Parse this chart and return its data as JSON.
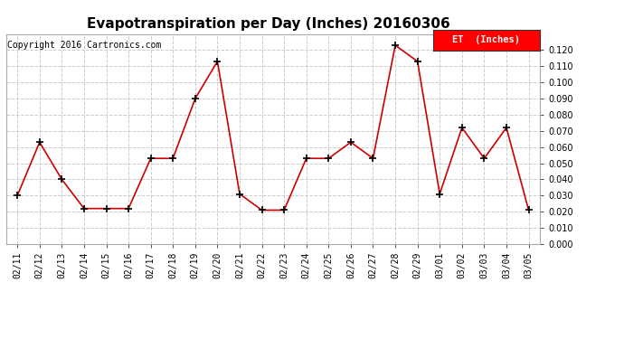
{
  "title": "Evapotranspiration per Day (Inches) 20160306",
  "copyright_text": "Copyright 2016 Cartronics.com",
  "legend_label": "ET  (Inches)",
  "legend_bg": "#ff0000",
  "legend_text_color": "#ffffff",
  "x_labels": [
    "02/11",
    "02/12",
    "02/13",
    "02/14",
    "02/15",
    "02/16",
    "02/17",
    "02/18",
    "02/19",
    "02/20",
    "02/21",
    "02/22",
    "02/23",
    "02/24",
    "02/25",
    "02/26",
    "02/27",
    "02/28",
    "02/29",
    "03/01",
    "03/02",
    "03/03",
    "03/04",
    "03/05"
  ],
  "y_values": [
    0.03,
    0.063,
    0.04,
    0.022,
    0.022,
    0.022,
    0.053,
    0.053,
    0.09,
    0.113,
    0.031,
    0.021,
    0.021,
    0.053,
    0.053,
    0.063,
    0.053,
    0.123,
    0.113,
    0.031,
    0.072,
    0.053,
    0.072,
    0.021
  ],
  "line_color": "#cc0000",
  "marker": "+",
  "marker_color": "#000000",
  "marker_size": 6,
  "marker_edge_width": 1.2,
  "line_width": 1.2,
  "ylim": [
    0.0,
    0.13
  ],
  "yticks": [
    0.0,
    0.01,
    0.02,
    0.03,
    0.04,
    0.05,
    0.06,
    0.07,
    0.08,
    0.09,
    0.1,
    0.11,
    0.12
  ],
  "grid_color": "#cccccc",
  "grid_linestyle": "--",
  "background_color": "#ffffff",
  "title_fontsize": 11,
  "copyright_fontsize": 7,
  "tick_fontsize": 7,
  "legend_fontsize": 7.5
}
